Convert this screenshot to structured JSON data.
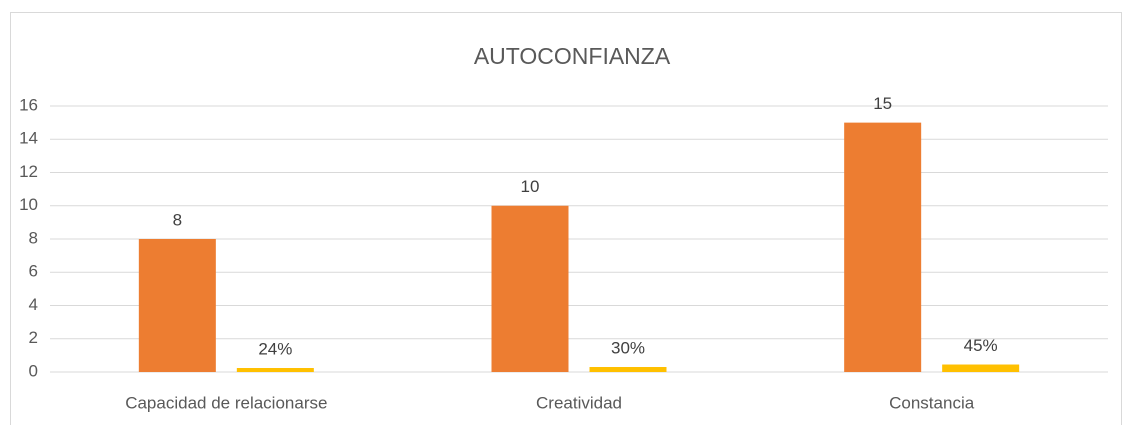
{
  "chart_data": {
    "type": "bar",
    "title": "AUTOCONFIANZA",
    "categories": [
      "Capacidad de relacionarse",
      "Creatividad",
      "Constancia"
    ],
    "series": [
      {
        "color": "#ed7d31",
        "values": [
          8,
          10,
          15
        ]
      },
      {
        "color": "#ffc000",
        "values": [
          0.24,
          0.3,
          0.45
        ],
        "value_labels": [
          "24%",
          "30%",
          "45%"
        ]
      }
    ],
    "ylim": [
      0,
      16
    ],
    "yticks": [
      0,
      2,
      4,
      6,
      8,
      10,
      12,
      14,
      16
    ],
    "grid": true
  }
}
